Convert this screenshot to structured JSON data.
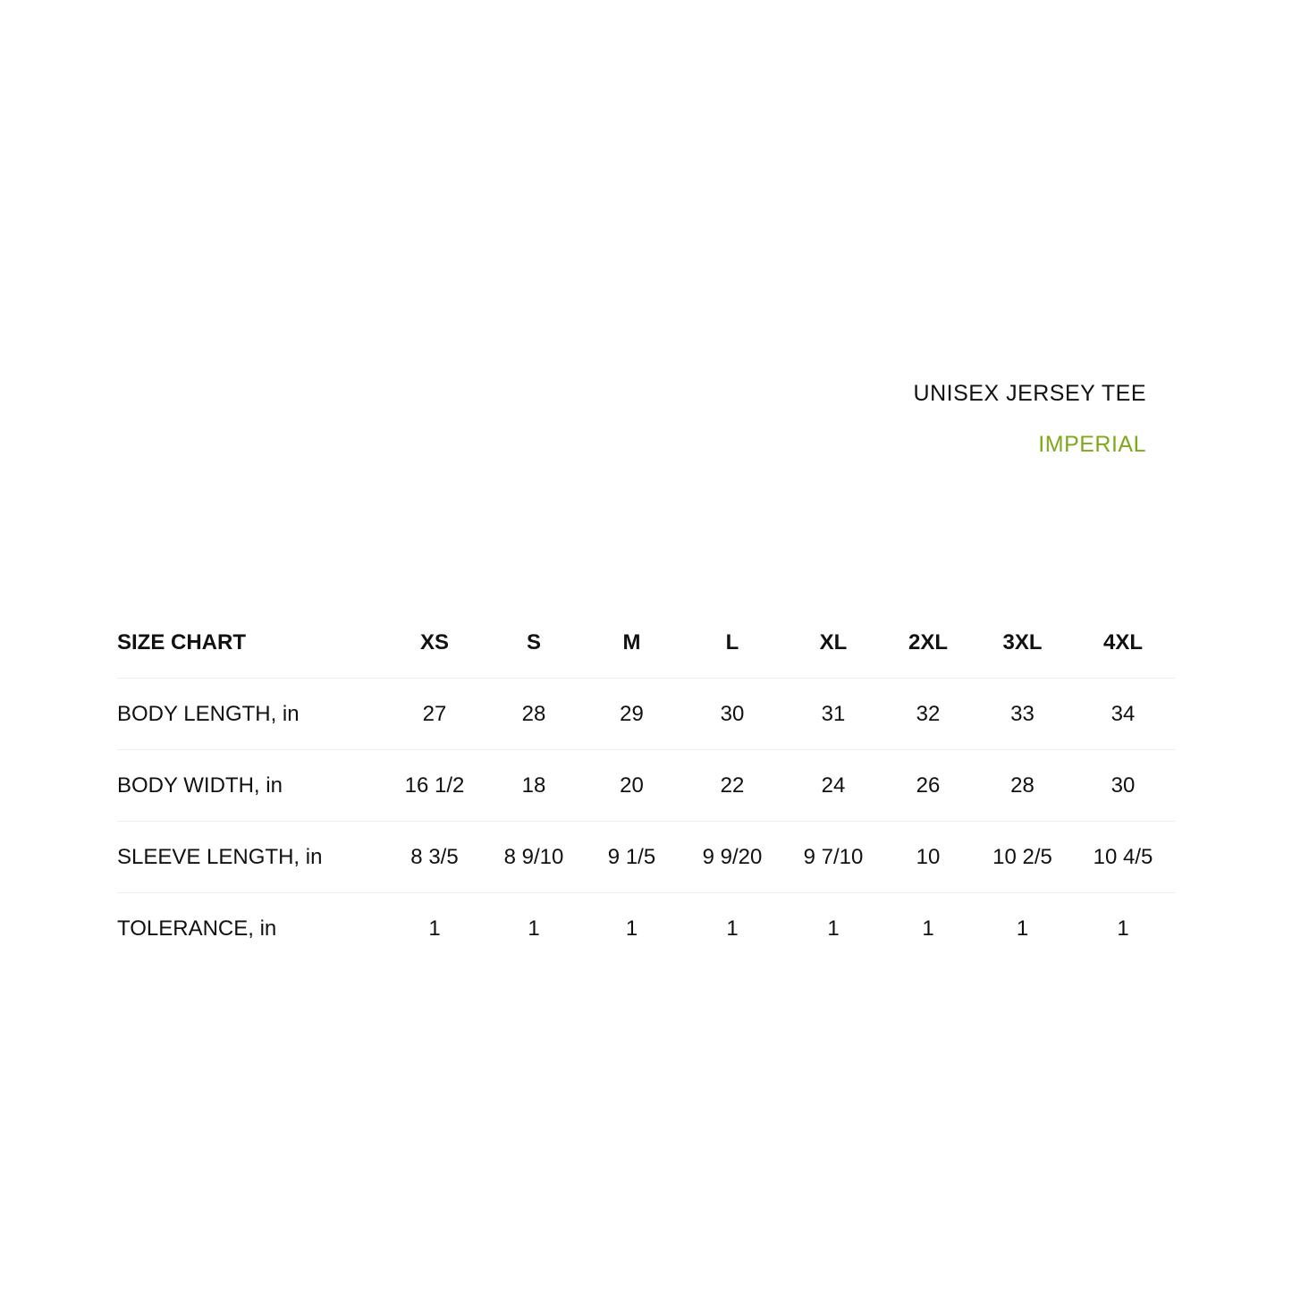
{
  "title": "UNISEX JERSEY TEE",
  "subtitle": "IMPERIAL",
  "accent_color": "#7fa81a",
  "table": {
    "header": [
      "SIZE CHART",
      "XS",
      "S",
      "M",
      "L",
      "XL",
      "2XL",
      "3XL",
      "4XL"
    ],
    "rows": [
      [
        "BODY LENGTH, in",
        "27",
        "28",
        "29",
        "30",
        "31",
        "32",
        "33",
        "34"
      ],
      [
        "BODY WIDTH, in",
        "16 1/2",
        "18",
        "20",
        "22",
        "24",
        "26",
        "28",
        "30"
      ],
      [
        "SLEEVE LENGTH, in",
        "8 3/5",
        "8 9/10",
        "9 1/5",
        "9 9/20",
        "9 7/10",
        "10",
        "10 2/5",
        "10 4/5"
      ],
      [
        "TOLERANCE, in",
        "1",
        "1",
        "1",
        "1",
        "1",
        "1",
        "1",
        "1"
      ]
    ]
  }
}
